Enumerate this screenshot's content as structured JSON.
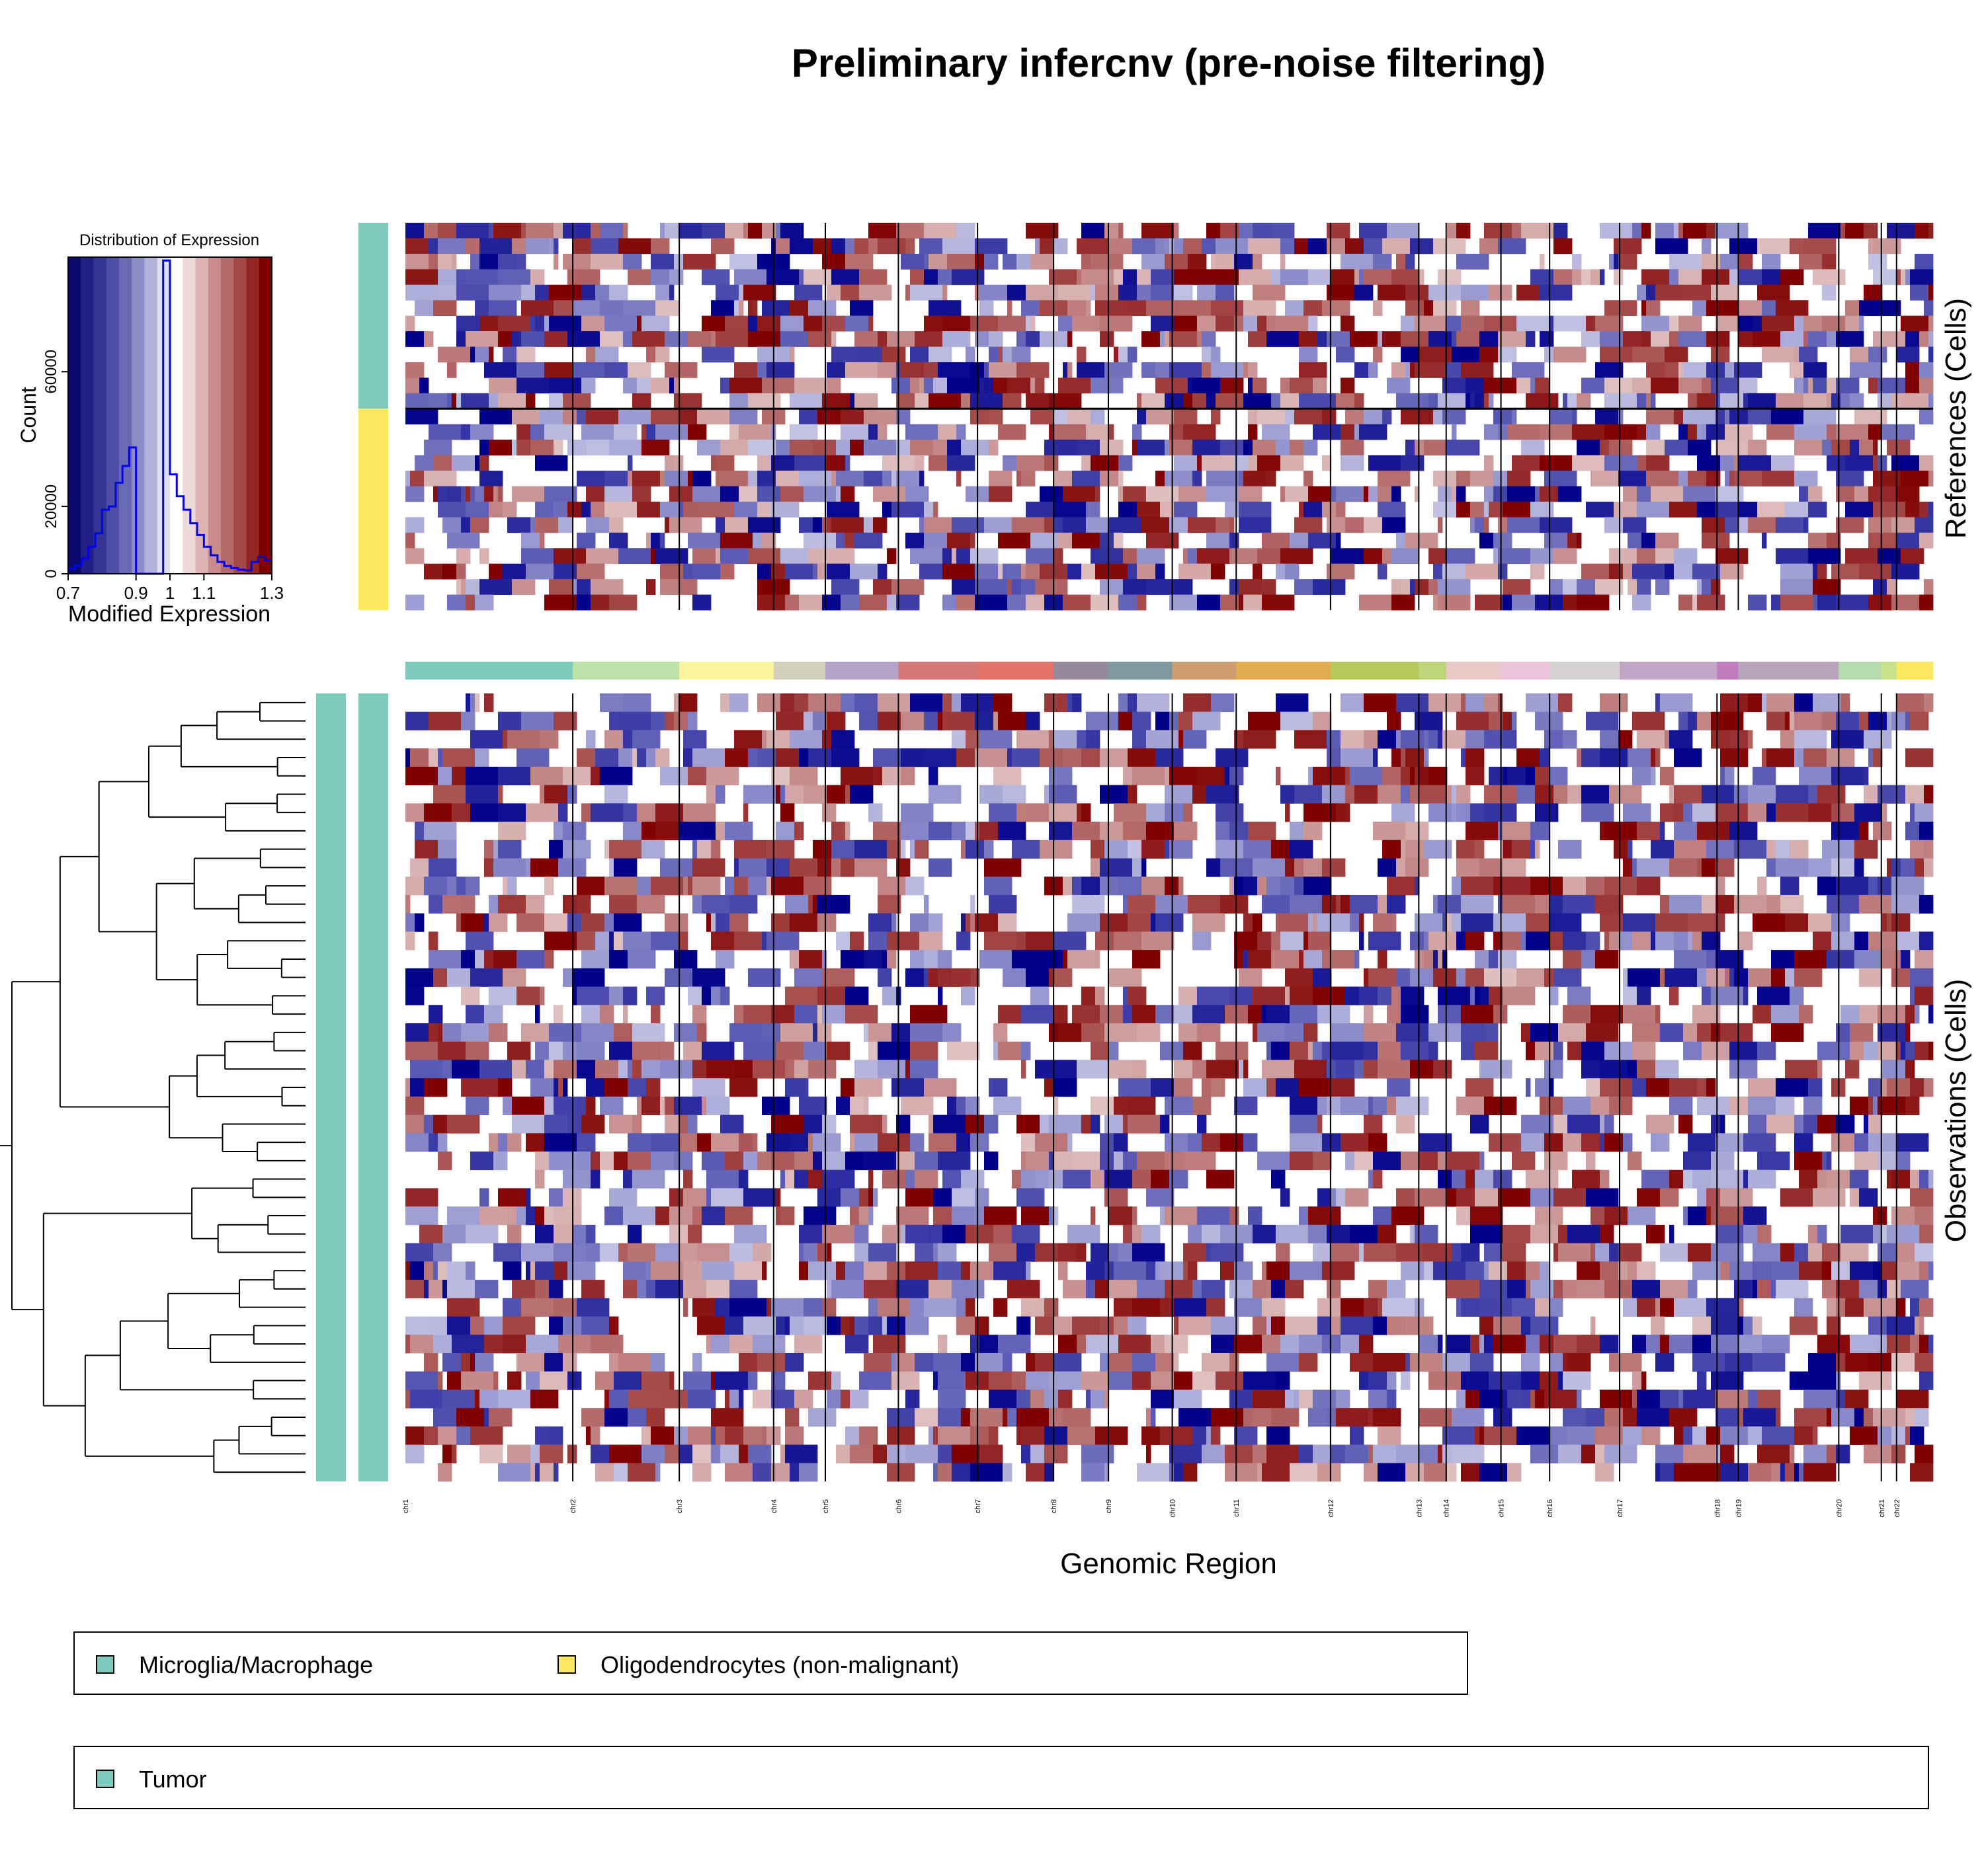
{
  "title": "Preliminary infercnv (pre-noise filtering)",
  "chart_data": [
    {
      "type": "bar",
      "title": "Distribution of Expression",
      "xlabel": "Modified Expression",
      "ylabel": "Count",
      "xlim": [
        0.7,
        1.3
      ],
      "ylim": [
        0,
        94000
      ],
      "x_ticks": [
        "0.7",
        "0.9",
        "1",
        "1.1",
        "1.3"
      ],
      "y_ticks": [
        "0",
        "20000",
        "60000"
      ],
      "bin_edges": [
        0.7,
        0.72,
        0.74,
        0.76,
        0.78,
        0.8,
        0.82,
        0.84,
        0.86,
        0.88,
        0.9,
        0.92,
        0.94,
        0.96,
        0.98,
        1.0,
        1.02,
        1.04,
        1.06,
        1.08,
        1.1,
        1.12,
        1.14,
        1.16,
        1.18,
        1.2,
        1.22,
        1.24,
        1.26,
        1.28,
        1.3
      ],
      "counts": [
        1500,
        2500,
        4500,
        8000,
        12000,
        19000,
        20000,
        27000,
        32000,
        37500,
        0,
        0,
        0,
        0,
        93000,
        29500,
        23000,
        19000,
        15000,
        11500,
        8000,
        5500,
        3500,
        2300,
        1700,
        1200,
        1000,
        3500,
        5000,
        4000
      ],
      "color_scale": [
        "#0a0a6b",
        "#1f1f85",
        "#343494",
        "#4d4da4",
        "#6a6ab4",
        "#8c8cc6",
        "#b3b3d9",
        "#dedeee",
        "#ffffff",
        "#eed9d9",
        "#dbb3b3",
        "#c88c8c",
        "#b56a6a",
        "#a34747",
        "#912424",
        "#7e0000"
      ],
      "line_color": "#0000ee"
    },
    {
      "type": "heatmap",
      "xlabel": "Genomic Region",
      "ylabel_top": "References (Cells)",
      "ylabel_bottom": "Observations (Cells)",
      "chromosomes": [
        "chr1",
        "chr2",
        "chr3",
        "chr4",
        "chr5",
        "chr6",
        "chr7",
        "chr8",
        "chr9",
        "chr10",
        "chr11",
        "chr12",
        "chr13",
        "chr14",
        "chr15",
        "chr16",
        "chr17",
        "chr18",
        "chr19",
        "chr20",
        "chr21",
        "chr22"
      ],
      "chrom_widths": [
        11.0,
        7.0,
        6.2,
        3.4,
        4.8,
        5.2,
        5.0,
        3.6,
        4.2,
        4.2,
        6.2,
        5.8,
        1.8,
        3.6,
        3.2,
        4.6,
        6.4,
        1.4,
        6.6,
        2.8,
        1.0,
        2.4
      ],
      "chrom_colors": [
        "#7ecabc",
        "#bde3a8",
        "#fbf59d",
        "#d3d0bb",
        "#b5a2c9",
        "#d6787a",
        "#e37269",
        "#948a9b",
        "#7f99a1",
        "#cf9c6e",
        "#e1ab4e",
        "#b8c95b",
        "#bed47b",
        "#e9c9c6",
        "#eec4db",
        "#d7d3d2",
        "#c1a6c7",
        "#c07cbd",
        "#b8a4b8",
        "#b6dbaf",
        "#c9e28b",
        "#fbe85f"
      ],
      "references": [
        {
          "name": "Microglia/Macrophage",
          "color": "#7ecabc",
          "cells": 12
        },
        {
          "name": "Oligodendrocytes (non-malignant)",
          "color": "#fbe85f",
          "cells": 13
        }
      ],
      "observation_groups": [
        {
          "name": "Tumor",
          "color": "#7ecabc",
          "cells": 43
        }
      ]
    }
  ],
  "legends": {
    "cell_types": [
      {
        "label": "Microglia/Macrophage",
        "color": "#7ecabc"
      },
      {
        "label": "Oligodendrocytes (non-malignant)",
        "color": "#fbe85f"
      }
    ],
    "groups": [
      {
        "label": "Tumor",
        "color": "#7ecabc"
      }
    ]
  }
}
